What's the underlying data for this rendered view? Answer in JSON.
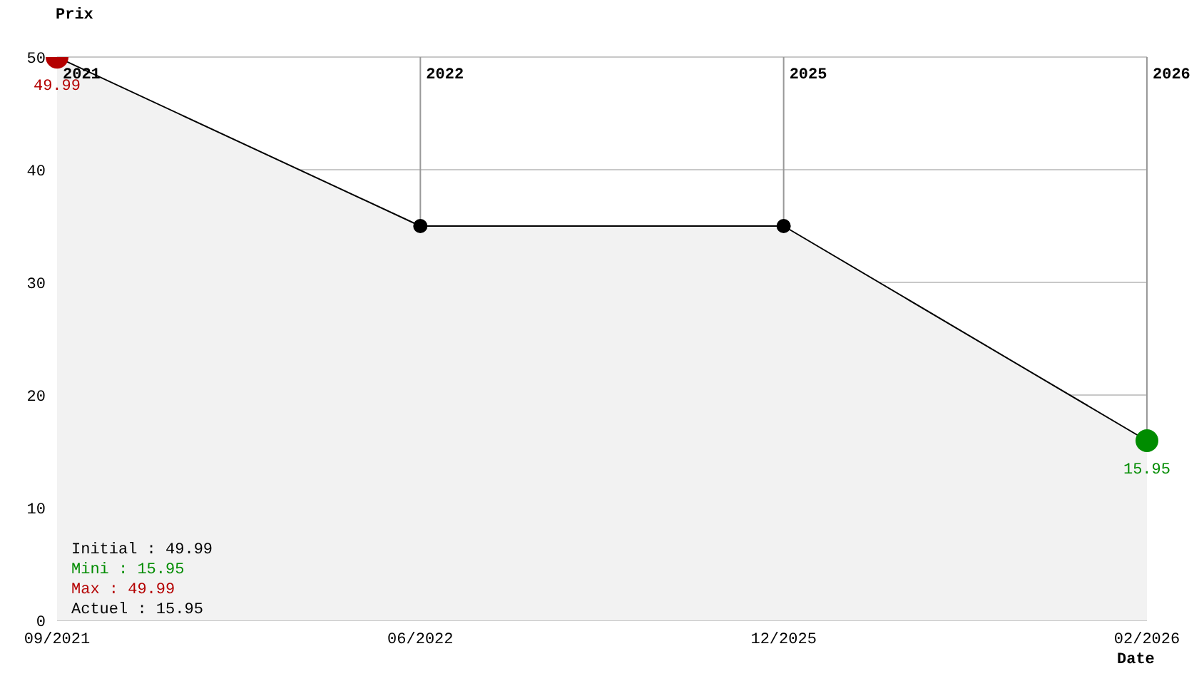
{
  "chart_data": {
    "type": "area",
    "xlabel": "Date",
    "ylabel": "Prix",
    "categories": [
      "09/2021",
      "06/2022",
      "12/2025",
      "02/2026"
    ],
    "series": [
      {
        "color": "#000000",
        "values": [
          49.99,
          35,
          35,
          15.95
        ],
        "colors": [
          "#b40000",
          "#000000",
          "#000000",
          "#008c00"
        ],
        "value_labels": [
          "49.99",
          null,
          null,
          "15.95"
        ]
      }
    ],
    "ylim": [
      0,
      50
    ],
    "yticks": [
      0,
      10,
      20,
      30,
      40,
      50
    ],
    "grid": "y",
    "legend": false,
    "marker": "circle",
    "line_style": "solid",
    "ref_lines": [
      {
        "axis": "x",
        "value": "06/2022",
        "label": "2022",
        "color": "#999999"
      },
      {
        "axis": "x",
        "value": "12/2025",
        "label": "2025",
        "color": "#999999"
      },
      {
        "axis": "x",
        "value": "02/2026",
        "label": "2026",
        "color": "#999999"
      }
    ],
    "annotations": [
      {
        "text": "2021",
        "x": "09/2021",
        "y": 50
      },
      "Initial : 49.99",
      "Mini : 15.95",
      "Max : 49.99",
      "Actuel : 15.95"
    ]
  }
}
